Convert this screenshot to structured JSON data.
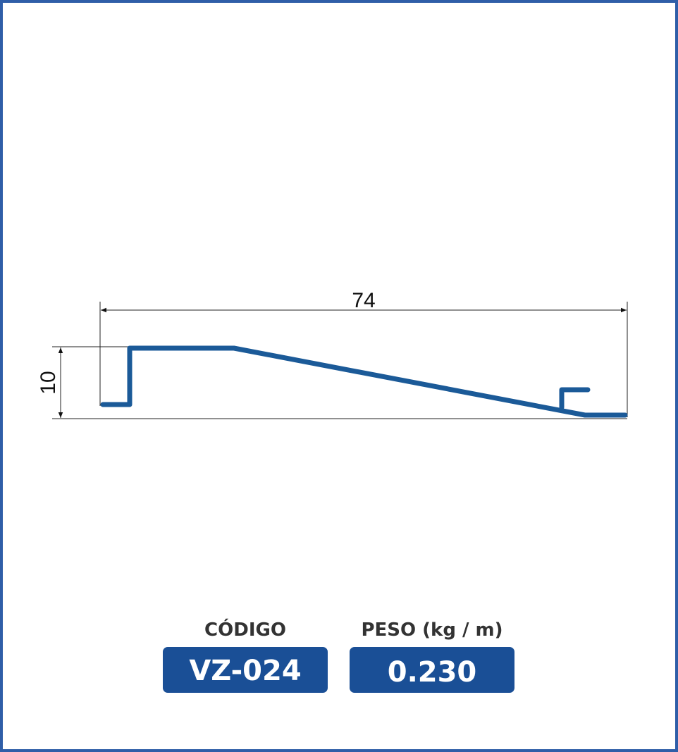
{
  "dimensions": {
    "width": "74",
    "height": "10"
  },
  "specs": {
    "code": {
      "label": "CÓDIGO",
      "value": "VZ-024"
    },
    "weight": {
      "label": "PESO (kg / m)",
      "value": "0.230"
    }
  }
}
